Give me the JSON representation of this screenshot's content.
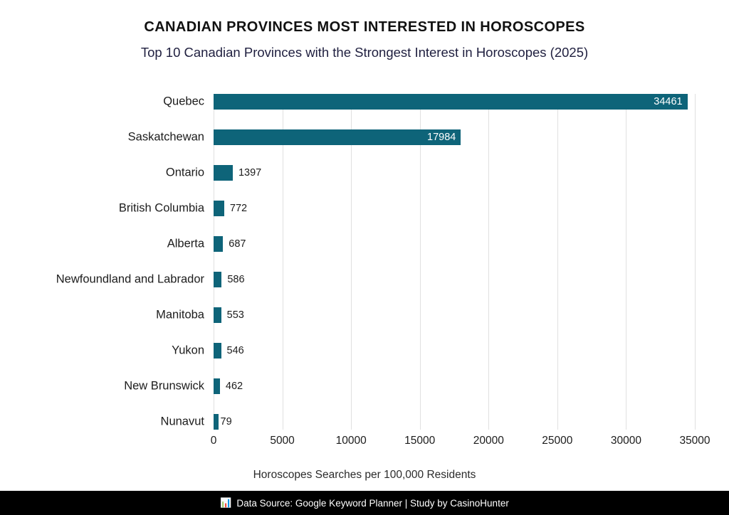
{
  "chart_data": {
    "type": "bar",
    "orientation": "horizontal",
    "title": "CANADIAN PROVINCES MOST INTERESTED IN HOROSCOPES",
    "subtitle": "Top 10 Canadian Provinces with the Strongest Interest in Horoscopes (2025)",
    "categories": [
      "Quebec",
      "Saskatchewan",
      "Ontario",
      "British Columbia",
      "Alberta",
      "Newfoundland and Labrador",
      "Manitoba",
      "Yukon",
      "New Brunswick",
      "Nunavut"
    ],
    "values": [
      34461,
      17984,
      1397,
      772,
      687,
      586,
      553,
      546,
      462,
      79
    ],
    "xlabel": "Horoscopes Searches per 100,000 Residents",
    "xticks": [
      0,
      5000,
      10000,
      15000,
      20000,
      25000,
      30000,
      35000
    ],
    "xlim": [
      0,
      35000
    ],
    "grid": true,
    "legend": "none",
    "bar_color": "#0e6479",
    "value_label_inside_min": 3000
  },
  "footer": {
    "icon": "📊",
    "text": "Data Source: Google Keyword Planner | Study by CasinoHunter"
  }
}
